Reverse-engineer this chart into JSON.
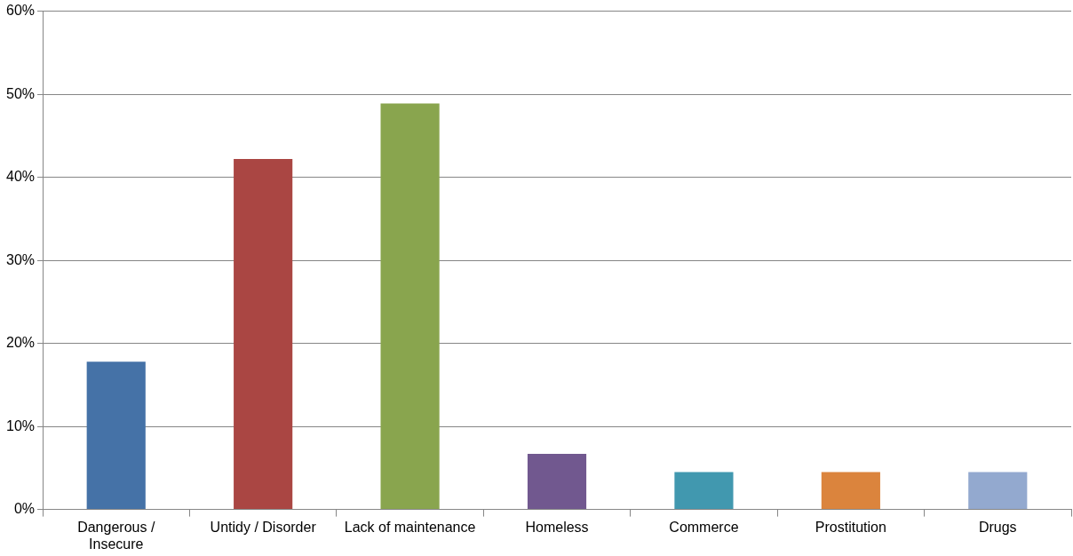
{
  "chart_data": {
    "type": "bar",
    "categories": [
      "Dangerous / Insecure",
      "Untidy / Disorder",
      "Lack of maintenance",
      "Homeless",
      "Commerce",
      "Prostitution",
      "Drugs"
    ],
    "values": [
      17.8,
      42.2,
      48.9,
      6.7,
      4.5,
      4.5,
      4.5
    ],
    "colors": [
      "#4572a7",
      "#aa4643",
      "#89a54e",
      "#71588f",
      "#4198af",
      "#db843d",
      "#93a9cf"
    ],
    "ylim": [
      0,
      60
    ],
    "yticks": [
      {
        "value": 0,
        "label": "0%"
      },
      {
        "value": 10,
        "label": "10%"
      },
      {
        "value": 20,
        "label": "20%"
      },
      {
        "value": 30,
        "label": "30%"
      },
      {
        "value": 40,
        "label": "40%"
      },
      {
        "value": 50,
        "label": "50%"
      },
      {
        "value": 60,
        "label": "60%"
      }
    ],
    "grid": "y",
    "legend": false
  }
}
